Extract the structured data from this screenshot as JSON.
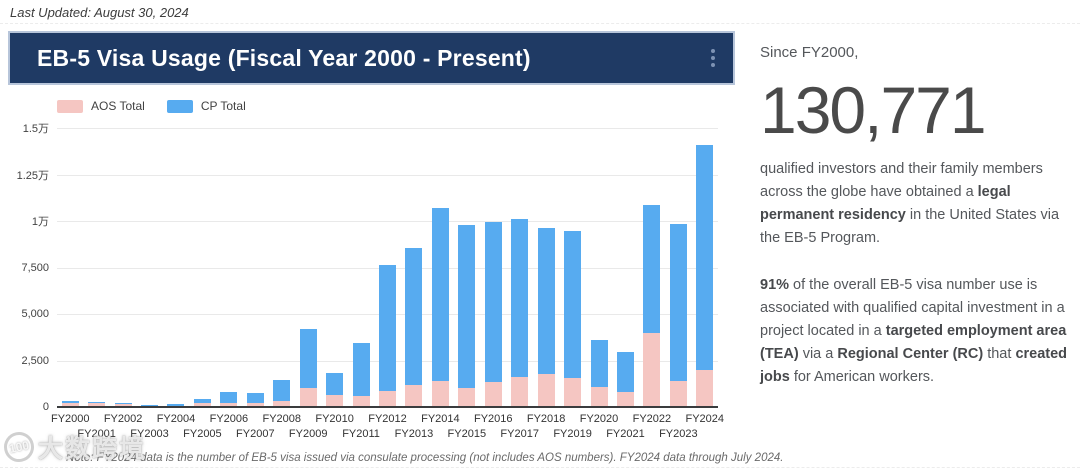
{
  "meta": {
    "last_updated": "Last Updated: August 30, 2024"
  },
  "header": {
    "title": "EB-5 Visa Usage (Fiscal Year 2000 - Present)"
  },
  "legend": [
    {
      "label": "AOS Total",
      "color": "#F5C6C2"
    },
    {
      "label": "CP Total",
      "color": "#57ABF0"
    }
  ],
  "chart_data": {
    "type": "bar",
    "stacked": true,
    "title": "EB-5 Visa Usage (Fiscal Year 2000 - Present)",
    "xlabel": "",
    "ylabel": "",
    "ylim": [
      0,
      15000
    ],
    "grid": true,
    "legend_position": "top-left",
    "categories": [
      "FY2000",
      "FY2001",
      "FY2002",
      "FY2003",
      "FY2004",
      "FY2005",
      "FY2006",
      "FY2007",
      "FY2008",
      "FY2009",
      "FY2010",
      "FY2011",
      "FY2012",
      "FY2013",
      "FY2014",
      "FY2015",
      "FY2016",
      "FY2017",
      "FY2018",
      "FY2019",
      "FY2020",
      "FY2021",
      "FY2022",
      "FY2023",
      "FY2024"
    ],
    "series": [
      {
        "name": "AOS Total",
        "color": "#F5C6C2",
        "values": [
          230,
          190,
          150,
          30,
          40,
          190,
          200,
          200,
          350,
          1000,
          650,
          610,
          850,
          1200,
          1400,
          1000,
          1360,
          1600,
          1770,
          1580,
          1090,
          820,
          4000,
          1400,
          2000
        ]
      },
      {
        "name": "CP Total",
        "color": "#57ABF0",
        "values": [
          90,
          60,
          50,
          60,
          120,
          230,
          600,
          570,
          1090,
          3200,
          1200,
          2820,
          6790,
          7360,
          9290,
          8760,
          8590,
          8490,
          7830,
          7900,
          2510,
          2120,
          6880,
          8440,
          12090
        ]
      }
    ],
    "yticks": [
      {
        "value": 0,
        "label": "0"
      },
      {
        "value": 2500,
        "label": "2,500"
      },
      {
        "value": 5000,
        "label": "5,000"
      },
      {
        "value": 7500,
        "label": "7,500"
      },
      {
        "value": 10000,
        "label": "1万"
      },
      {
        "value": 12500,
        "label": "1.25万"
      },
      {
        "value": 15000,
        "label": "1.5万"
      }
    ]
  },
  "note": "Note: FY2024 data is the number of EB-5 visa issued via consulate processing (not includes AOS numbers). FY2024 data through July 2024.",
  "right_panel": {
    "intro": "Since FY2000,",
    "big_number": "130,771",
    "p1": [
      {
        "text": "qualified investors and their family members across the globe have obtained a "
      },
      {
        "text": "legal permanent residency",
        "bold": true
      },
      {
        "text": " in the United States via the EB-5 Program."
      }
    ],
    "p2": [
      {
        "text": "91%",
        "bold": true
      },
      {
        "text": " of the overall EB-5 visa number use is associated with qualified capital investment in a project located in a "
      },
      {
        "text": "targeted employment area (TEA)",
        "bold": true
      },
      {
        "text": " via a "
      },
      {
        "text": "Regional Center (RC)",
        "bold": true
      },
      {
        "text": " that "
      },
      {
        "text": "created jobs",
        "bold": true
      },
      {
        "text": " for American workers."
      }
    ]
  },
  "watermark": {
    "logo": "100",
    "text": "大数跨境"
  }
}
